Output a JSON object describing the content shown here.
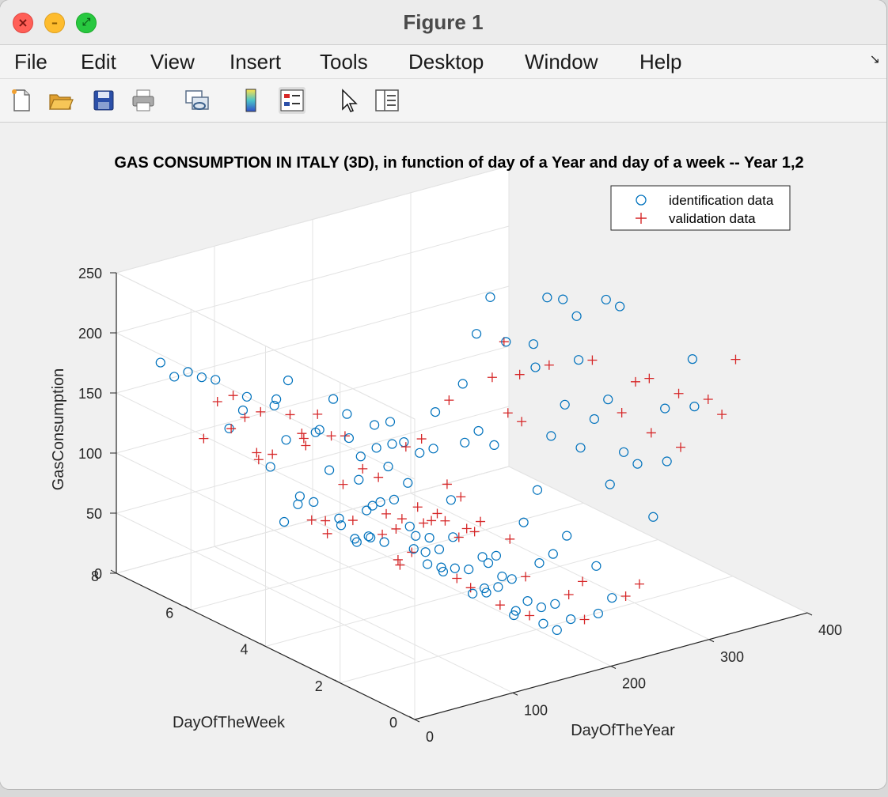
{
  "window": {
    "title": "Figure 1"
  },
  "menu": [
    "File",
    "Edit",
    "View",
    "Insert",
    "Tools",
    "Desktop",
    "Window",
    "Help"
  ],
  "toolbar": {
    "icons": [
      "new-figure-icon",
      "open-file-icon",
      "save-icon",
      "print-icon",
      "link-plot-icon",
      "colorbar-icon",
      "legend-icon",
      "edit-plot-icon",
      "property-inspector-icon"
    ]
  },
  "chart_data": {
    "type": "scatter",
    "dimensions": 3,
    "title": "GAS CONSUMPTION IN ITALY (3D), in function of day of a Year and day of a week -- Year 1,2",
    "xlabel": "DayOfTheYear",
    "ylabel": "DayOfTheWeek",
    "zlabel": "GasConsumption",
    "xlim": [
      0,
      400
    ],
    "ylim": [
      0,
      8
    ],
    "zlim": [
      0,
      250
    ],
    "xticks": [
      "0",
      "100",
      "200",
      "300",
      "400"
    ],
    "yticks": [
      "0",
      "2",
      "4",
      "6",
      "8"
    ],
    "zticks": [
      "0",
      "50",
      "100",
      "150",
      "200",
      "250"
    ],
    "grid": true,
    "legend": {
      "position": "top-right",
      "entries": [
        "identification data",
        "validation data"
      ]
    },
    "colors": {
      "identification data": "#0072bd",
      "validation data": "#d62728"
    },
    "series": [
      {
        "name": "identification data",
        "marker": "circle",
        "consumption_model": "daily consumption is high in winter (≈160–245 near day 0 and day 365), falls to ≈20–60 in summer (days 150–260); weekend days (6, 7) are lower than weekdays"
      },
      {
        "name": "validation data",
        "marker": "plus",
        "consumption_model": "same seasonal U-shape as identification data with slightly lower winter peaks (≈120–240)"
      }
    ]
  }
}
